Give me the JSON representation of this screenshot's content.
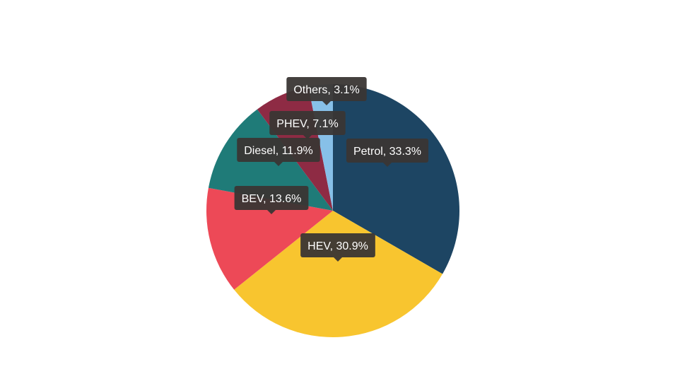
{
  "chart_data": {
    "type": "pie",
    "title": "",
    "legend": "none",
    "slices": [
      {
        "label": "Petrol",
        "value": 33.3,
        "data_label": "Petrol, 33.3%",
        "color": "#1d4563"
      },
      {
        "label": "HEV",
        "value": 30.9,
        "data_label": "HEV, 30.9%",
        "color": "#f8c52f"
      },
      {
        "label": "BEV",
        "value": 13.6,
        "data_label": "BEV, 13.6%",
        "color": "#ed4957"
      },
      {
        "label": "Diesel",
        "value": 11.9,
        "data_label": "Diesel, 11.9%",
        "color": "#1f7b78"
      },
      {
        "label": "PHEV",
        "value": 7.1,
        "data_label": "PHEV, 7.1%",
        "color": "#8e2b44"
      },
      {
        "label": "Others",
        "value": 3.1,
        "data_label": "Others, 3.1%",
        "color": "#87c0e8"
      }
    ],
    "label_bg_color": "#3a3634",
    "label_text_color": "#ffffff"
  }
}
